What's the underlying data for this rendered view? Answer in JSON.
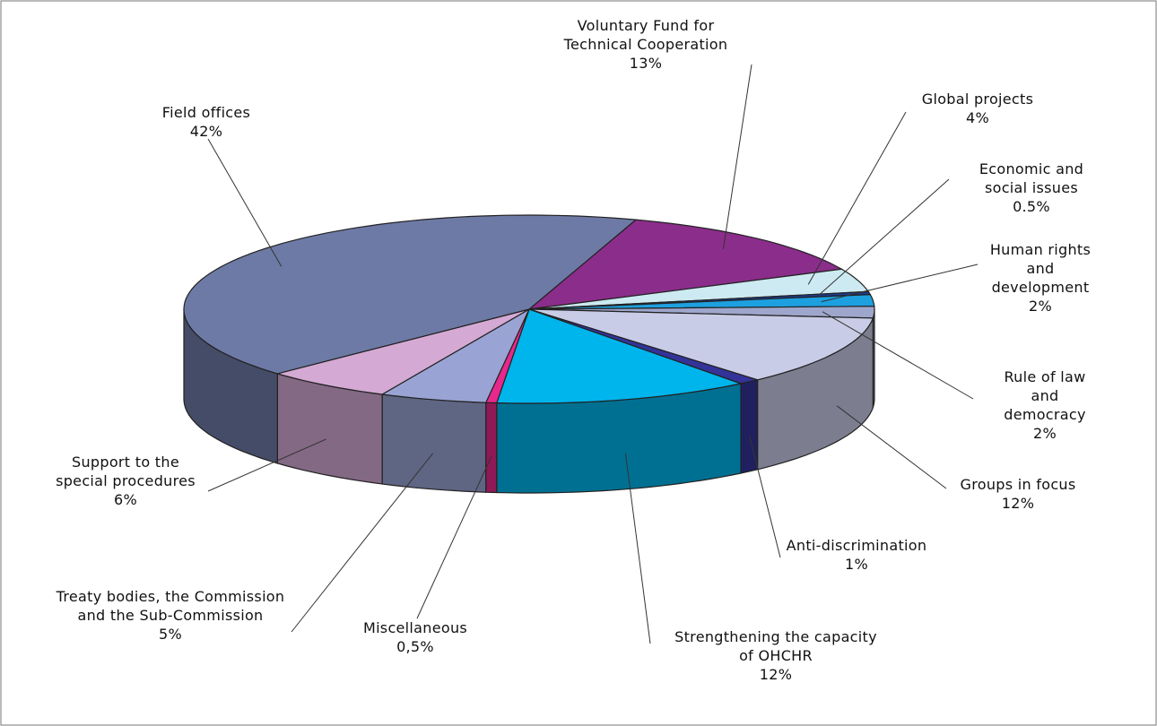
{
  "chart_data": {
    "type": "pie3d",
    "categories": [
      "Voluntary Fund for\nTechnical Cooperation",
      "Global projects",
      "Economic and\nsocial issues",
      "Human rights and\ndevelopment",
      "Rule of law\nand democracy",
      "Groups in focus",
      "Anti-discrimination",
      "Strengthening the capacity\nof OHCHR",
      "Miscellaneous",
      "Treaty bodies, the Commission\nand the Sub-Commission",
      "Support to the\nspecial procedures",
      "Field offices"
    ],
    "values": [
      13,
      4,
      0.5,
      2,
      2,
      12,
      1,
      12,
      0.5,
      5,
      6,
      42
    ],
    "value_labels": [
      "13%",
      "4%",
      "0.5%",
      "2%",
      "2%",
      "12%",
      "1%",
      "12%",
      "0,5%",
      "5%",
      "6%",
      "42%"
    ],
    "colors": [
      "#8b2d8b",
      "#cdeaf2",
      "#1e3c8c",
      "#1da0e0",
      "#9ea6cc",
      "#c8cce6",
      "#333399",
      "#00b4ec",
      "#e6288c",
      "#99a4d4",
      "#d4aad4",
      "#6e7aa6"
    ]
  }
}
